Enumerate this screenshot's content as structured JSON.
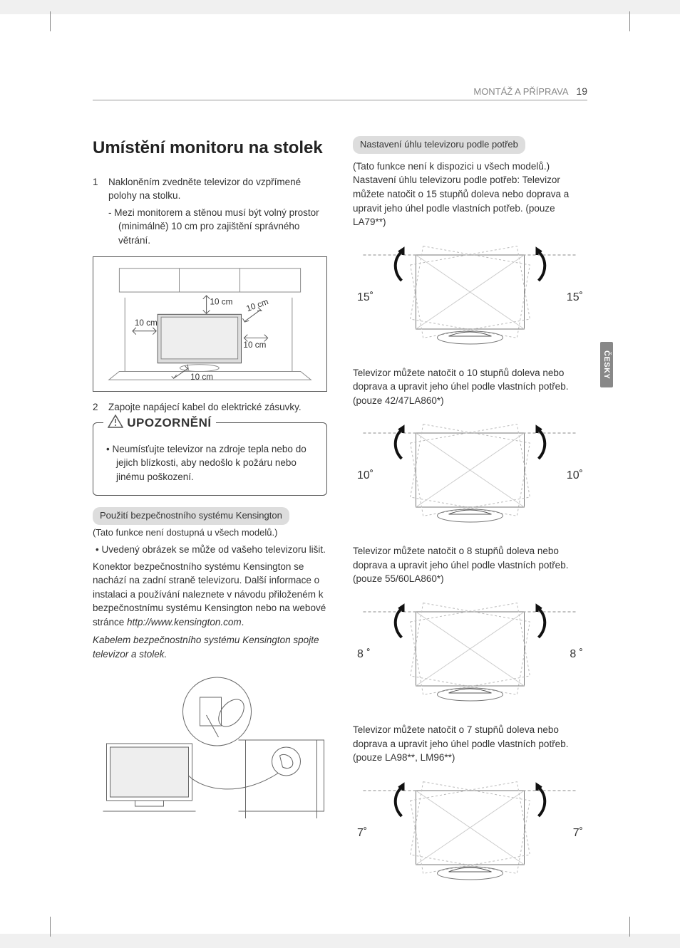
{
  "header": {
    "section": "MONTÁŽ A PŘÍPRAVA",
    "page_num": "19"
  },
  "side_tab": "ČESKY",
  "left": {
    "title": "Umístění monitoru na stolek",
    "step1_num": "1",
    "step1_text": "Nakloněním zvedněte televizor do vzpřímené polohy na stolku.",
    "step1_sub": "Mezi monitorem a stěnou musí být volný prostor (minimálně) 10 cm pro zajištění správného větrání.",
    "fig1_labels": {
      "top": "10 cm",
      "left": "10 cm",
      "right_upper": "10 cm",
      "right_lower": "10 cm",
      "bottom": "10 cm"
    },
    "step2_num": "2",
    "step2_text": "Zapojte napájecí kabel do elektrické zásuvky.",
    "warning_title": "UPOZORNĚNÍ",
    "warning_text": "Neumísťujte televizor na zdroje tepla nebo do jejich blízkosti, aby nedošlo k požáru nebo jinému poškození.",
    "kens_title": "Použití bezpečnostního systému Kensington",
    "kens_note": "(Tato funkce není dostupná u všech modelů.)",
    "kens_bullet": "Uvedený obrázek se může od vašeho televizoru lišit.",
    "kens_para": "Konektor bezpečnostního systému Kensington se nachází na zadní straně televizoru. Další informace o instalaci a používání naleznete v návodu přiloženém k bezpečnostnímu systému Kensington nebo na webové stránce ",
    "kens_url": "http://www.kensington.com",
    "kens_para_end": ".",
    "kens_connect": "Kabelem bezpečnostního systému Kensington spojte televizor a stolek."
  },
  "right": {
    "swivel_title": "Nastavení úhlu televizoru podle potřeb",
    "swivel_intro": "(Tato funkce není k dispozici u všech modelů.)\nNastavení úhlu televizoru podle potřeb: Televizor můžete natočit o 15 stupňů doleva nebo doprava a upravit jeho úhel podle vlastních potřeb. (pouze LA79**)",
    "blocks": [
      {
        "angle": "15˚",
        "text": "Televizor můžete natočit o 10 stupňů doleva nebo doprava a upravit jeho úhel podle vlastních potřeb. (pouze 42/47LA860*)"
      },
      {
        "angle": "10˚",
        "text": "Televizor můžete natočit o 8 stupňů doleva nebo doprava a upravit jeho úhel podle vlastních potřeb. (pouze 55/60LA860*)"
      },
      {
        "angle": "8 ˚",
        "text": "Televizor můžete natočit o 7 stupňů doleva nebo doprava a upravit jeho úhel podle vlastních potřeb. (pouze LA98**, LM96**)"
      },
      {
        "angle": "7˚",
        "text": ""
      }
    ],
    "angles": [
      "15˚",
      "10˚",
      "8 ˚",
      "7˚"
    ]
  },
  "colors": {
    "text": "#333333",
    "muted": "#888888",
    "line": "#555555",
    "pill_bg": "#dddddd",
    "tab_bg": "#888888"
  }
}
